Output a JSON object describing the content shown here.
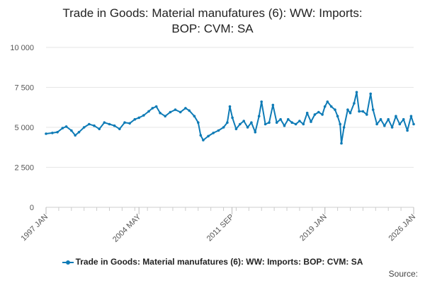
{
  "chart_data": {
    "type": "line",
    "title_lines": [
      "Trade in Goods: Material manufatures (6): WW: Imports:",
      "BOP: CVM: SA"
    ],
    "xlabel": "",
    "ylabel": "",
    "ylim": [
      0,
      10000
    ],
    "y_ticks": [
      0,
      2500,
      5000,
      7500,
      10000
    ],
    "y_tick_labels": [
      "0",
      "2 500",
      "5 000",
      "7 500",
      "10 000"
    ],
    "x_tick_labels": [
      "1997 JAN",
      "2004 MAY",
      "2011 SEP",
      "2019 JAN",
      "2026 JAN"
    ],
    "x_tick_positions": [
      1997.0,
      2004.33,
      2011.67,
      2019.0,
      2026.0
    ],
    "x_range": [
      1997.0,
      2026.0
    ],
    "grid": true,
    "legend_position": "bottom",
    "series": [
      {
        "name": "Trade in Goods: Material manufatures (6): WW: Imports: BOP: CVM: SA",
        "color": "#0e7bb6",
        "points": [
          [
            1997.0,
            4600
          ],
          [
            1997.5,
            4650
          ],
          [
            1997.9,
            4700
          ],
          [
            1998.3,
            4950
          ],
          [
            1998.6,
            5050
          ],
          [
            1999.0,
            4800
          ],
          [
            1999.3,
            4500
          ],
          [
            1999.6,
            4700
          ],
          [
            2000.0,
            5000
          ],
          [
            2000.4,
            5200
          ],
          [
            2000.8,
            5100
          ],
          [
            2001.2,
            4900
          ],
          [
            2001.6,
            5300
          ],
          [
            2002.0,
            5200
          ],
          [
            2002.4,
            5100
          ],
          [
            2002.8,
            4900
          ],
          [
            2003.2,
            5300
          ],
          [
            2003.6,
            5250
          ],
          [
            2004.0,
            5500
          ],
          [
            2004.33,
            5600
          ],
          [
            2004.7,
            5750
          ],
          [
            2005.1,
            6000
          ],
          [
            2005.4,
            6200
          ],
          [
            2005.7,
            6300
          ],
          [
            2006.0,
            5900
          ],
          [
            2006.4,
            5700
          ],
          [
            2006.8,
            5950
          ],
          [
            2007.2,
            6100
          ],
          [
            2007.6,
            5950
          ],
          [
            2008.0,
            6200
          ],
          [
            2008.3,
            6050
          ],
          [
            2008.7,
            5700
          ],
          [
            2009.0,
            5300
          ],
          [
            2009.2,
            4500
          ],
          [
            2009.4,
            4200
          ],
          [
            2009.8,
            4450
          ],
          [
            2010.2,
            4650
          ],
          [
            2010.6,
            4800
          ],
          [
            2011.0,
            5000
          ],
          [
            2011.3,
            5300
          ],
          [
            2011.5,
            6300
          ],
          [
            2011.7,
            5600
          ],
          [
            2012.0,
            4900
          ],
          [
            2012.3,
            5200
          ],
          [
            2012.6,
            5400
          ],
          [
            2012.9,
            5000
          ],
          [
            2013.2,
            5300
          ],
          [
            2013.5,
            4700
          ],
          [
            2013.8,
            5700
          ],
          [
            2014.0,
            6600
          ],
          [
            2014.3,
            5200
          ],
          [
            2014.6,
            5300
          ],
          [
            2014.9,
            6400
          ],
          [
            2015.2,
            5300
          ],
          [
            2015.5,
            5500
          ],
          [
            2015.8,
            5100
          ],
          [
            2016.1,
            5500
          ],
          [
            2016.4,
            5300
          ],
          [
            2016.7,
            5200
          ],
          [
            2017.0,
            5400
          ],
          [
            2017.3,
            5200
          ],
          [
            2017.6,
            5900
          ],
          [
            2017.9,
            5350
          ],
          [
            2018.2,
            5800
          ],
          [
            2018.5,
            5950
          ],
          [
            2018.8,
            5800
          ],
          [
            2019.0,
            6300
          ],
          [
            2019.2,
            6600
          ],
          [
            2019.5,
            6300
          ],
          [
            2019.8,
            6100
          ],
          [
            2020.0,
            5700
          ],
          [
            2020.2,
            5200
          ],
          [
            2020.3,
            4000
          ],
          [
            2020.5,
            5000
          ],
          [
            2020.8,
            6100
          ],
          [
            2021.0,
            5900
          ],
          [
            2021.3,
            6500
          ],
          [
            2021.5,
            7200
          ],
          [
            2021.7,
            6000
          ],
          [
            2022.0,
            6000
          ],
          [
            2022.3,
            5800
          ],
          [
            2022.6,
            7100
          ],
          [
            2022.8,
            6100
          ],
          [
            2023.1,
            5200
          ],
          [
            2023.4,
            5500
          ],
          [
            2023.7,
            5100
          ],
          [
            2024.0,
            5500
          ],
          [
            2024.3,
            5000
          ],
          [
            2024.6,
            5700
          ],
          [
            2024.9,
            5200
          ],
          [
            2025.2,
            5500
          ],
          [
            2025.5,
            4800
          ],
          [
            2025.8,
            5700
          ],
          [
            2026.0,
            5200
          ]
        ]
      }
    ]
  },
  "legend": {
    "label": "Trade in Goods: Material manufatures (6): WW: Imports: BOP: CVM: SA"
  },
  "source_label": "Source:"
}
